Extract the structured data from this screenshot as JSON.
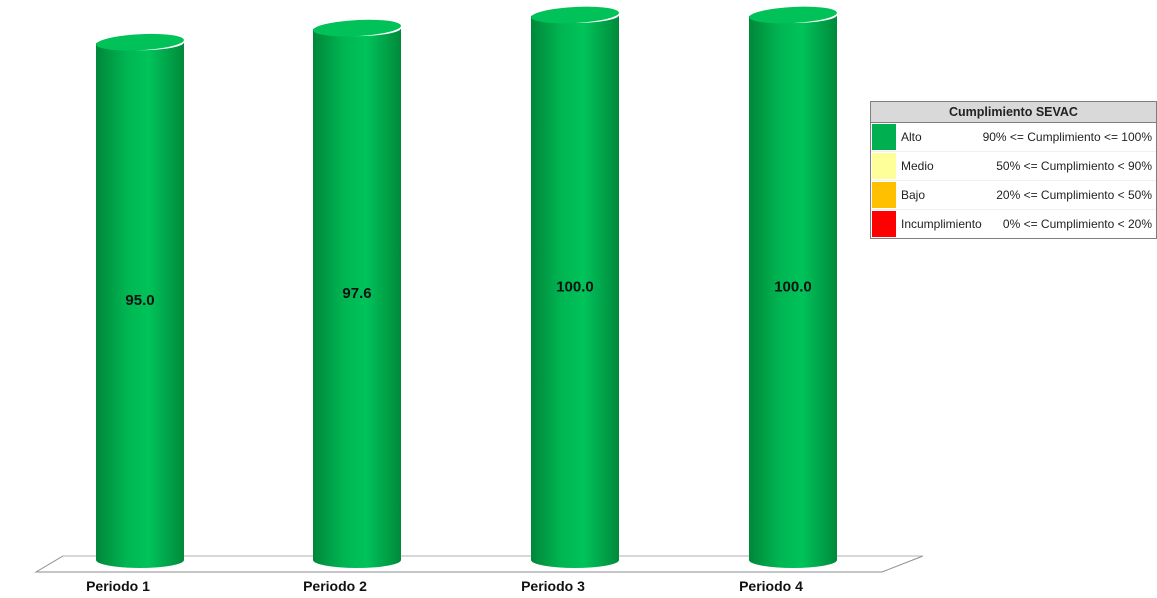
{
  "chart_data": {
    "type": "bar",
    "categories": [
      "Periodo 1",
      "Periodo 2",
      "Periodo 3",
      "Periodo 4"
    ],
    "values": [
      95.0,
      97.6,
      100.0,
      100.0
    ],
    "value_labels": [
      "95.0",
      "97.6",
      "100.0",
      "100.0"
    ],
    "ylim": [
      0,
      100
    ],
    "bar_style": "3d-cylinder",
    "bar_color": "#00b050",
    "grid": false,
    "legend_placement": "top-right"
  },
  "legend": {
    "title": "Cumplimiento SEVAC",
    "items": [
      {
        "name": "Alto",
        "range": "90% <= Cumplimiento <= 100%",
        "color": "#00b050"
      },
      {
        "name": "Medio",
        "range": "50% <= Cumplimiento < 90%",
        "color": "#ffff99"
      },
      {
        "name": "Bajo",
        "range": "20% <= Cumplimiento < 50%",
        "color": "#ffc000"
      },
      {
        "name": "Incumplimiento",
        "range": "0% <= Cumplimiento < 20%",
        "color": "#ff0000"
      }
    ]
  }
}
